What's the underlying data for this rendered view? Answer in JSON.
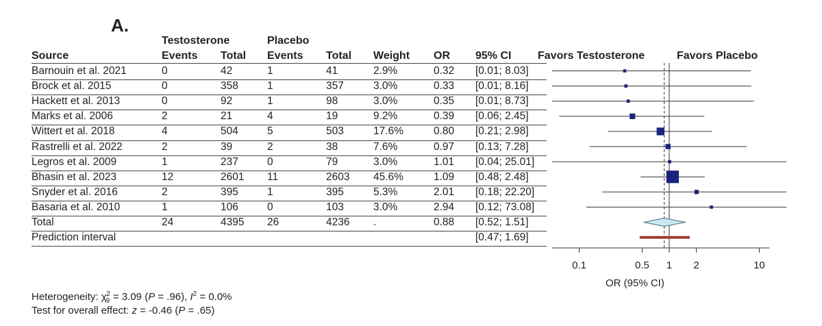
{
  "panel_label": "A.",
  "group_headers": {
    "testosterone": "Testosterone",
    "placebo": "Placebo"
  },
  "columns": {
    "source": "Source",
    "t_events": "Events",
    "t_total": "Total",
    "p_events": "Events",
    "p_total": "Total",
    "weight": "Weight",
    "or": "OR",
    "ci": "95% CI",
    "favors_left": "Favors Testosterone",
    "favors_right": "Favors Placebo"
  },
  "rows": [
    {
      "source": "Barnouin et al. 2021",
      "t_events": "0",
      "t_total": "42",
      "p_events": "1",
      "p_total": "41",
      "weight": "2.9%",
      "or": "0.32",
      "ci": "[0.01;  8.03]"
    },
    {
      "source": "Brock et al. 2015",
      "t_events": "0",
      "t_total": "358",
      "p_events": "1",
      "p_total": "357",
      "weight": "3.0%",
      "or": "0.33",
      "ci": "[0.01;  8.16]"
    },
    {
      "source": "Hackett et al. 2013",
      "t_events": "0",
      "t_total": "92",
      "p_events": "1",
      "p_total": "98",
      "weight": "3.0%",
      "or": "0.35",
      "ci": "[0.01;  8.73]"
    },
    {
      "source": "Marks et al. 2006",
      "t_events": "2",
      "t_total": "21",
      "p_events": "4",
      "p_total": "19",
      "weight": "9.2%",
      "or": "0.39",
      "ci": "[0.06;  2.45]"
    },
    {
      "source": "Wittert et al. 2018",
      "t_events": "4",
      "t_total": "504",
      "p_events": "5",
      "p_total": "503",
      "weight": "17.6%",
      "or": "0.80",
      "ci": "[0.21;  2.98]"
    },
    {
      "source": "Rastrelli et al. 2022",
      "t_events": "2",
      "t_total": "39",
      "p_events": "2",
      "p_total": "38",
      "weight": "7.6%",
      "or": "0.97",
      "ci": "[0.13;  7.28]"
    },
    {
      "source": "Legros et al. 2009",
      "t_events": "1",
      "t_total": "237",
      "p_events": "0",
      "p_total": "79",
      "weight": "3.0%",
      "or": "1.01",
      "ci": "[0.04; 25.01]"
    },
    {
      "source": "Bhasin et al. 2023",
      "t_events": "12",
      "t_total": "2601",
      "p_events": "11",
      "p_total": "2603",
      "weight": "45.6%",
      "or": "1.09",
      "ci": "[0.48;  2.48]"
    },
    {
      "source": "Snyder et al. 2016",
      "t_events": "2",
      "t_total": "395",
      "p_events": "1",
      "p_total": "395",
      "weight": "5.3%",
      "or": "2.01",
      "ci": "[0.18; 22.20]"
    },
    {
      "source": "Basaria et al. 2010",
      "t_events": "1",
      "t_total": "106",
      "p_events": "0",
      "p_total": "103",
      "weight": "3.0%",
      "or": "2.94",
      "ci": "[0.12; 73.08]"
    }
  ],
  "total_row": {
    "source": "Total",
    "t_events": "24",
    "t_total": "4395",
    "p_events": "26",
    "p_total": "4236",
    "weight": ".",
    "or": "0.88",
    "ci": "[0.52;  1.51]"
  },
  "prediction_row": {
    "source": "Prediction interval",
    "ci": "[0.47;  1.69]"
  },
  "footer": {
    "heterogeneity_prefix": "Heterogeneity: χ",
    "chi_sub": "9",
    "chi_sup": "2",
    "heterogeneity_mid": " = 3.09 (",
    "p_italic": "P",
    "heterogeneity_p": " = .96), ",
    "i_italic": "I",
    "i_sup": "2",
    "heterogeneity_end": " = 0.0%",
    "overall_prefix": "Test for overall effect: ",
    "z_italic": "z",
    "overall_mid": " = -0.46 (",
    "overall_p_italic": "P",
    "overall_end": " = .65)"
  },
  "colors": {
    "square": "#1a237e",
    "diamond_fill": "#c9e8f0",
    "diamond_stroke": "#456b80",
    "prediction_bar": "#a03a2e",
    "line": "#333333"
  },
  "chart_data": {
    "type": "forest",
    "xlabel": "OR (95% CI)",
    "x_scale": "log",
    "xlim": [
      0.05,
      20
    ],
    "ticks": [
      0.1,
      0.5,
      1,
      2,
      10
    ],
    "tick_labels": [
      "0.1",
      "0.5",
      "1",
      "2",
      "10"
    ],
    "null_line": 1,
    "pooled_line": 0.88,
    "studies": [
      {
        "or": 0.32,
        "lo": 0.01,
        "hi": 8.03,
        "weight": 2.9
      },
      {
        "or": 0.33,
        "lo": 0.01,
        "hi": 8.16,
        "weight": 3.0
      },
      {
        "or": 0.35,
        "lo": 0.01,
        "hi": 8.73,
        "weight": 3.0
      },
      {
        "or": 0.39,
        "lo": 0.06,
        "hi": 2.45,
        "weight": 9.2
      },
      {
        "or": 0.8,
        "lo": 0.21,
        "hi": 2.98,
        "weight": 17.6
      },
      {
        "or": 0.97,
        "lo": 0.13,
        "hi": 7.28,
        "weight": 7.6
      },
      {
        "or": 1.01,
        "lo": 0.04,
        "hi": 25.01,
        "weight": 3.0
      },
      {
        "or": 1.09,
        "lo": 0.48,
        "hi": 2.48,
        "weight": 45.6
      },
      {
        "or": 2.01,
        "lo": 0.18,
        "hi": 22.2,
        "weight": 5.3
      },
      {
        "or": 2.94,
        "lo": 0.12,
        "hi": 73.08,
        "weight": 3.0
      }
    ],
    "pooled": {
      "or": 0.88,
      "lo": 0.52,
      "hi": 1.51
    },
    "prediction": {
      "lo": 0.47,
      "hi": 1.69
    }
  }
}
